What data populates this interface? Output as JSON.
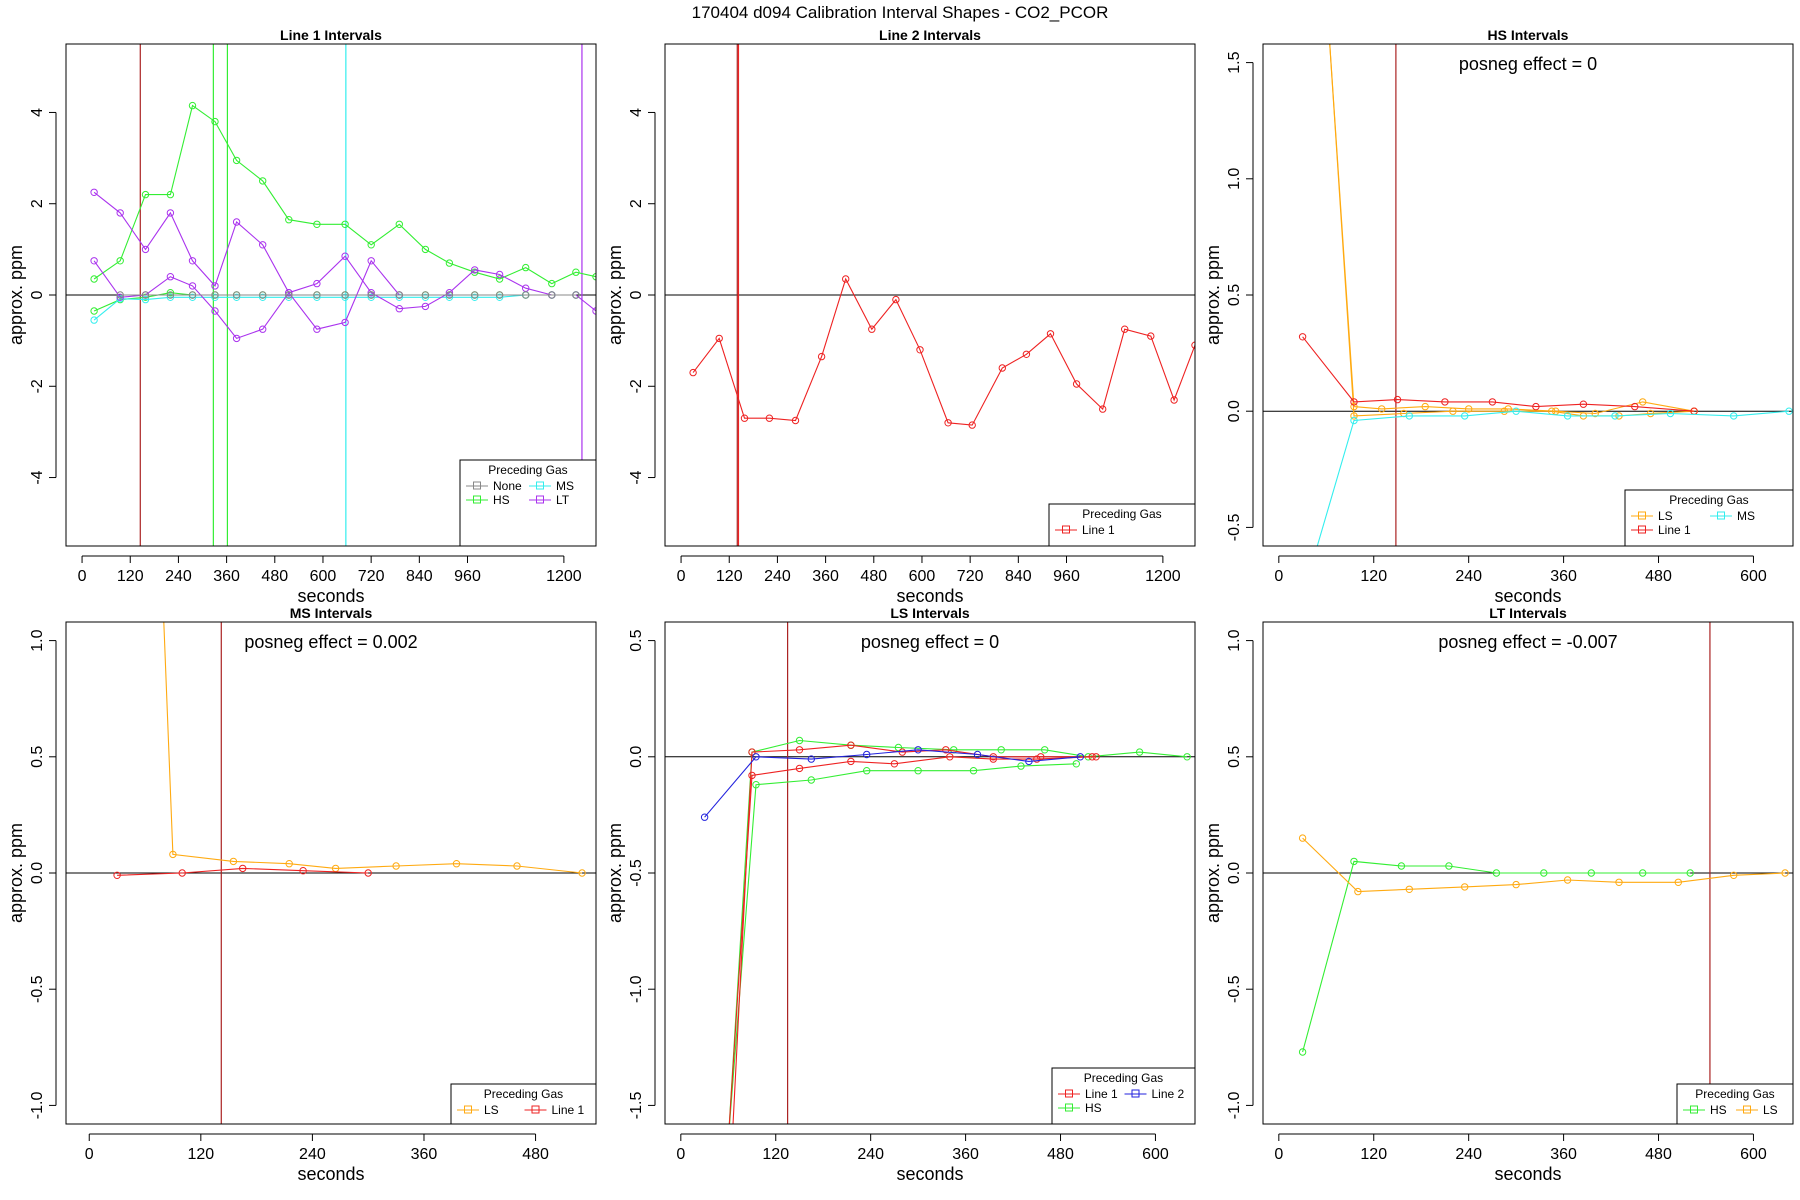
{
  "figure_title": "170404  d094   Calibration Interval Shapes - CO2_PCOR",
  "colors": {
    "None": "#888888",
    "HS": "#33ee33",
    "MS": "#33eeee",
    "LT": "#aa33ee",
    "Line 1": "#ee2222",
    "Line 2": "#2222dd",
    "LS": "#ffaa11",
    "vline_red": "#aa2222",
    "zero_line": "#000000"
  },
  "chart_data": [
    {
      "type": "line",
      "title": "Line 1 Intervals",
      "xlabel": "seconds",
      "ylabel": "approx. ppm",
      "xlim": [
        -40,
        1280
      ],
      "ylim": [
        -5.5,
        5.5
      ],
      "xticks": [
        0,
        120,
        240,
        360,
        480,
        600,
        720,
        840,
        960,
        1200
      ],
      "yticks": [
        -4,
        -2,
        0,
        2,
        4
      ],
      "annotation": "",
      "legend": {
        "title": "Preceding Gas",
        "entries": [
          "None",
          "MS",
          "HS",
          "LT"
        ],
        "columns": 2
      },
      "vlines": [
        {
          "x": 145,
          "color": "vline_red"
        },
        {
          "x": 327,
          "color": "HS"
        },
        {
          "x": 362,
          "color": "HS"
        },
        {
          "x": 657,
          "color": "MS"
        },
        {
          "x": 1245,
          "color": "LT"
        }
      ],
      "series": [
        {
          "name": "HS",
          "x": [
            30,
            95,
            158,
            220,
            275,
            331,
            385,
            450,
            515,
            585,
            655,
            720,
            790,
            855,
            915,
            978,
            1040,
            1105,
            1170,
            1230,
            1280
          ],
          "y": [
            0.35,
            0.75,
            2.2,
            2.2,
            4.15,
            3.8,
            2.95,
            2.5,
            1.65,
            1.55,
            1.55,
            1.1,
            1.55,
            1.0,
            0.7,
            0.5,
            0.35,
            0.6,
            0.25,
            0.5,
            0.4
          ]
        },
        {
          "name": "HS",
          "x": [
            30,
            95,
            158,
            220,
            275,
            331,
            385,
            450,
            515,
            585,
            655,
            720,
            790,
            855,
            915,
            978,
            1040,
            1105,
            1170,
            1230
          ],
          "y": [
            -0.35,
            -0.1,
            -0.05,
            0.05,
            0.0,
            0.0,
            0.0,
            0.0,
            0.0,
            0.0,
            0.0,
            0.0,
            0.0,
            0.0,
            0.0,
            0.0,
            0.0,
            0.0,
            0.0,
            0.0
          ]
        },
        {
          "name": "MS",
          "x": [
            30,
            95,
            158,
            220,
            275,
            331,
            385,
            450,
            515,
            585,
            655,
            720,
            790,
            855,
            915,
            978,
            1040,
            1105,
            1170,
            1230
          ],
          "y": [
            -0.55,
            -0.08,
            -0.1,
            -0.05,
            -0.05,
            -0.05,
            -0.05,
            -0.05,
            -0.05,
            -0.05,
            -0.05,
            -0.05,
            -0.05,
            -0.05,
            -0.05,
            -0.05,
            -0.05,
            0.0,
            0.0,
            0.0
          ]
        },
        {
          "name": "LT",
          "x": [
            30,
            95,
            158,
            220,
            275,
            331,
            385,
            450,
            515,
            585,
            655,
            720,
            790,
            855,
            915,
            978,
            1040,
            1105,
            1170,
            1230,
            1280
          ],
          "y": [
            2.25,
            1.8,
            1.0,
            1.8,
            0.75,
            0.2,
            1.6,
            1.1,
            0.05,
            0.25,
            0.85,
            0.05,
            -0.3,
            -0.25,
            0.05,
            0.55,
            0.45,
            0.15,
            0.0,
            0.0,
            -0.35
          ]
        },
        {
          "name": "LT",
          "x": [
            30,
            95,
            158,
            220,
            275,
            331,
            385,
            450,
            515,
            585,
            655,
            720,
            790
          ],
          "y": [
            0.75,
            -0.05,
            0.0,
            0.4,
            0.2,
            -0.35,
            -0.95,
            -0.75,
            0.05,
            -0.75,
            -0.6,
            0.75,
            0.0
          ]
        },
        {
          "name": "None",
          "x": [
            95,
            158,
            220,
            275,
            331,
            385,
            450,
            515,
            585,
            655,
            720,
            790,
            855,
            915,
            978,
            1040,
            1105,
            1170,
            1230
          ],
          "y": [
            0,
            0,
            0,
            0,
            0,
            0,
            0,
            0,
            0,
            0,
            0,
            0,
            0,
            0,
            0,
            0,
            0,
            0,
            0
          ]
        }
      ]
    },
    {
      "type": "line",
      "title": "Line 2 Intervals",
      "xlabel": "seconds",
      "ylabel": "approx. ppm",
      "xlim": [
        -40,
        1280
      ],
      "ylim": [
        -5.5,
        5.5
      ],
      "xticks": [
        0,
        120,
        240,
        360,
        480,
        600,
        720,
        840,
        960,
        1200
      ],
      "yticks": [
        -4,
        -2,
        0,
        2,
        4
      ],
      "annotation": "",
      "legend": {
        "title": "Preceding Gas",
        "entries": [
          "Line 1"
        ],
        "columns": 1
      },
      "vlines": [
        {
          "x": 140,
          "color": "vline_red"
        },
        {
          "x": 143,
          "color": "Line 1"
        }
      ],
      "series": [
        {
          "name": "Line 1",
          "x": [
            30,
            95,
            158,
            220,
            285,
            350,
            410,
            475,
            535,
            595,
            665,
            725,
            800,
            860,
            920,
            985,
            1050,
            1105,
            1170,
            1228,
            1280
          ],
          "y": [
            -1.7,
            -0.95,
            -2.7,
            -2.7,
            -2.75,
            -1.35,
            0.35,
            -0.75,
            -0.1,
            -1.2,
            -2.8,
            -2.85,
            -1.6,
            -1.3,
            -0.85,
            -1.95,
            -2.5,
            -0.75,
            -0.9,
            -2.3,
            -1.1
          ]
        }
      ]
    },
    {
      "type": "line",
      "title": "HS Intervals",
      "xlabel": "seconds",
      "ylabel": "approx. ppm",
      "xlim": [
        -20,
        650
      ],
      "ylim": [
        -0.58,
        1.58
      ],
      "xticks": [
        0,
        120,
        240,
        360,
        480,
        600
      ],
      "yticks": [
        -0.5,
        0.0,
        0.5,
        1.0,
        1.5
      ],
      "annotation": "posneg effect = 0",
      "legend": {
        "title": "Preceding Gas",
        "entries": [
          "LS",
          "MS",
          "Line 1"
        ],
        "columns": 2
      },
      "vlines": [
        {
          "x": 148,
          "color": "vline_red"
        }
      ],
      "series": [
        {
          "name": "LS",
          "x": [
            62,
            95,
            130,
            185,
            240,
            290,
            350,
            400,
            460,
            525
          ],
          "y": [
            1.7,
            0.02,
            0.01,
            0.02,
            0.01,
            0.01,
            0.0,
            -0.01,
            0.04,
            0.0
          ]
        },
        {
          "name": "LS",
          "x": [
            62,
            95,
            158,
            220,
            285,
            345,
            385,
            430,
            470,
            525
          ],
          "y": [
            1.7,
            -0.02,
            -0.01,
            0.0,
            0.0,
            0.0,
            -0.02,
            -0.02,
            -0.01,
            0.0
          ]
        },
        {
          "name": "Line 1",
          "x": [
            30,
            95,
            150,
            210,
            270,
            325,
            385,
            450,
            525
          ],
          "y": [
            0.32,
            0.04,
            0.05,
            0.04,
            0.04,
            0.02,
            0.03,
            0.02,
            0.0
          ]
        },
        {
          "name": "MS",
          "x": [
            40,
            95,
            165,
            235,
            300,
            365,
            425,
            495,
            575,
            645
          ],
          "y": [
            -0.68,
            -0.04,
            -0.02,
            -0.02,
            0.0,
            -0.02,
            -0.02,
            -0.01,
            -0.02,
            0.0
          ]
        }
      ]
    },
    {
      "type": "line",
      "title": "MS Intervals",
      "xlabel": "seconds",
      "ylabel": "approx. ppm",
      "xlim": [
        -25,
        545
      ],
      "ylim": [
        -1.08,
        1.08
      ],
      "xticks": [
        0,
        120,
        240,
        360,
        480
      ],
      "yticks": [
        -1.0,
        -0.5,
        0.0,
        0.5,
        1.0
      ],
      "annotation": "posneg effect = 0.002",
      "legend": {
        "title": "Preceding Gas",
        "entries": [
          "LS",
          "Line 1"
        ],
        "columns": 2
      },
      "vlines": [
        {
          "x": 142,
          "color": "vline_red"
        }
      ],
      "series": [
        {
          "name": "LS",
          "x": [
            78,
            90,
            155,
            215,
            265,
            330,
            395,
            460,
            530
          ],
          "y": [
            1.3,
            0.08,
            0.05,
            0.04,
            0.02,
            0.03,
            0.04,
            0.03,
            0.0
          ]
        },
        {
          "name": "Line 1",
          "x": [
            30,
            100,
            165,
            230,
            300
          ],
          "y": [
            -0.01,
            0.0,
            0.02,
            0.01,
            0.0
          ]
        }
      ]
    },
    {
      "type": "line",
      "title": "LS Intervals",
      "xlabel": "seconds",
      "ylabel": "approx. ppm",
      "xlim": [
        -20,
        650
      ],
      "ylim": [
        -1.58,
        0.58
      ],
      "xticks": [
        0,
        120,
        240,
        360,
        480,
        600
      ],
      "yticks": [
        -1.5,
        -1.0,
        -0.5,
        0.0,
        0.5
      ],
      "annotation": "posneg effect = 0",
      "legend": {
        "title": "Preceding Gas",
        "entries": [
          "Line 1",
          "Line 2",
          "HS"
        ],
        "columns": 2
      },
      "vlines": [
        {
          "x": 135,
          "color": "vline_red"
        }
      ],
      "series": [
        {
          "name": "HS",
          "x": [
            60,
            90,
            150,
            215,
            275,
            345,
            405,
            460,
            515,
            580,
            640
          ],
          "y": [
            -1.65,
            0.02,
            0.07,
            0.05,
            0.04,
            0.03,
            0.03,
            0.03,
            0.0,
            0.02,
            0.0
          ]
        },
        {
          "name": "HS",
          "x": [
            60,
            95,
            165,
            235,
            300,
            370,
            430,
            500
          ],
          "y": [
            -1.65,
            -0.12,
            -0.1,
            -0.06,
            -0.06,
            -0.06,
            -0.04,
            -0.03
          ]
        },
        {
          "name": "Line 1",
          "x": [
            60,
            90,
            150,
            215,
            270,
            340,
            395,
            450,
            520
          ],
          "y": [
            -1.65,
            -0.08,
            -0.05,
            -0.02,
            -0.03,
            0.0,
            -0.01,
            -0.01,
            0.0
          ]
        },
        {
          "name": "Line 1",
          "x": [
            65,
            90,
            150,
            215,
            280,
            335,
            395,
            455,
            525
          ],
          "y": [
            -1.65,
            0.02,
            0.03,
            0.05,
            0.02,
            0.03,
            0.0,
            0.0,
            0.0
          ]
        },
        {
          "name": "Line 2",
          "x": [
            30,
            95,
            165,
            235,
            300,
            375,
            440,
            505
          ],
          "y": [
            -0.26,
            0.0,
            -0.01,
            0.01,
            0.03,
            0.01,
            -0.02,
            0.0
          ]
        }
      ]
    },
    {
      "type": "line",
      "title": "LT Intervals",
      "xlabel": "seconds",
      "ylabel": "approx. ppm",
      "xlim": [
        -20,
        650
      ],
      "ylim": [
        -1.08,
        1.08
      ],
      "xticks": [
        0,
        120,
        240,
        360,
        480,
        600
      ],
      "yticks": [
        -1.0,
        -0.5,
        0.0,
        0.5,
        1.0
      ],
      "annotation": "posneg effect = -0.007",
      "legend": {
        "title": "Preceding Gas",
        "entries": [
          "HS",
          "LS"
        ],
        "columns": 2
      },
      "vlines": [
        {
          "x": 545,
          "color": "vline_red"
        }
      ],
      "series": [
        {
          "name": "HS",
          "x": [
            30,
            95,
            155,
            215,
            275,
            335,
            395,
            460,
            520
          ],
          "y": [
            -0.77,
            0.05,
            0.03,
            0.03,
            0.0,
            0.0,
            0.0,
            0.0,
            0.0
          ]
        },
        {
          "name": "LS",
          "x": [
            30,
            100,
            165,
            235,
            300,
            365,
            430,
            505,
            575,
            640
          ],
          "y": [
            0.15,
            -0.08,
            -0.07,
            -0.06,
            -0.05,
            -0.03,
            -0.04,
            -0.04,
            -0.01,
            0.0
          ]
        }
      ]
    }
  ]
}
